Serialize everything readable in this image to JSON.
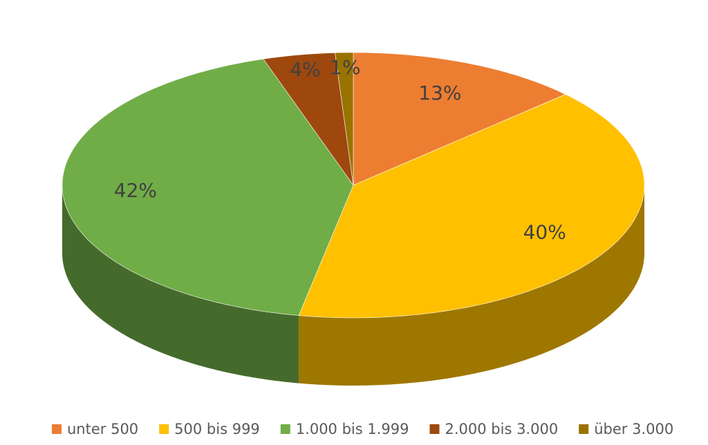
{
  "chart_data": {
    "type": "pie3d",
    "categories": [
      "unter 500",
      "500 bis 999",
      "1.000 bis 1.999",
      "2.000 bis 3.000",
      "über 3.000"
    ],
    "values": [
      13,
      40,
      42,
      4,
      1
    ],
    "value_labels": [
      "13%",
      "40%",
      "42%",
      "4%",
      "1%"
    ],
    "colors": [
      "#ed7d31",
      "#ffc000",
      "#70ad47",
      "#9e480e",
      "#997300"
    ],
    "legend": "bottom"
  }
}
